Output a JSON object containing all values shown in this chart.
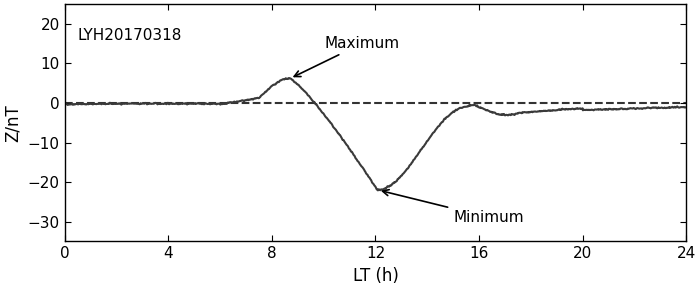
{
  "xlabel": "LT (h)",
  "ylabel": "Z/nT",
  "xlim": [
    0,
    24
  ],
  "ylim": [
    -35,
    25
  ],
  "yticks": [
    -30,
    -20,
    -10,
    0,
    10,
    20
  ],
  "xticks": [
    0,
    4,
    8,
    12,
    16,
    20,
    24
  ],
  "label": "LYH20170318",
  "max_label": "Maximum",
  "min_label": "Minimum",
  "line_color": "#3a3a3a",
  "dashed_color": "#333333",
  "background_color": "#ffffff",
  "annotation_fontsize": 11,
  "label_fontsize": 12,
  "tick_fontsize": 11,
  "figsize": [
    7.0,
    2.89
  ],
  "dpi": 100
}
